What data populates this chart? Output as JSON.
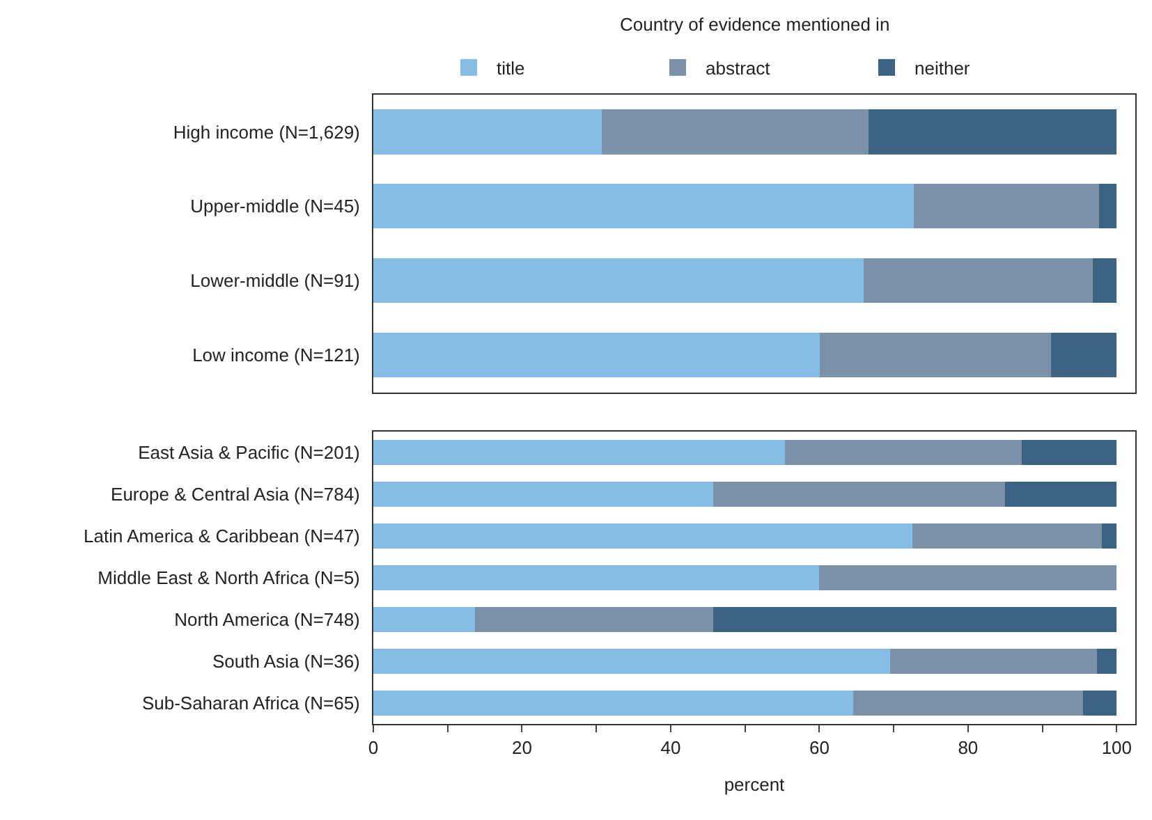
{
  "chart_data": [
    {
      "type": "bar",
      "orientation": "horizontal",
      "stacked": true,
      "legend": "top",
      "legend_title": "Country of evidence mentioned in",
      "tick_labels": "y",
      "categories": [
        "High income (N=1,629)",
        "Upper-middle (N=45)",
        "Lower-middle (N=91)",
        "Low income (N=121)"
      ],
      "series": [
        {
          "name": "title",
          "color": "#85bde6",
          "values": [
            30.7,
            72.7,
            66.0,
            60.1
          ]
        },
        {
          "name": "abstract",
          "color": "#7b91a8",
          "values": [
            35.9,
            24.9,
            30.8,
            31.1
          ]
        },
        {
          "name": "neither",
          "color": "#3d6383",
          "values": [
            33.4,
            2.4,
            3.2,
            8.8
          ]
        }
      ],
      "xlim": [
        0,
        102.5
      ]
    },
    {
      "type": "bar",
      "orientation": "horizontal",
      "stacked": true,
      "xlabel": "percent",
      "categories": [
        "East Asia & Pacific (N=201)",
        "Europe & Central Asia (N=784)",
        "Latin America & Caribbean (N=47)",
        "Middle East & North Africa (N=5)",
        "North America (N=748)",
        "South Asia (N=36)",
        "Sub-Saharan Africa (N=65)"
      ],
      "series": [
        {
          "color": "#85bde6",
          "values": [
            55.4,
            45.7,
            72.5,
            60.0,
            13.7,
            69.5,
            64.6
          ]
        },
        {
          "color": "#7b91a8",
          "values": [
            31.8,
            39.3,
            25.5,
            40.0,
            32.0,
            27.8,
            30.9
          ]
        },
        {
          "color": "#3d6383",
          "values": [
            12.8,
            15.0,
            2.0,
            0.0,
            54.3,
            2.7,
            4.5
          ]
        }
      ],
      "xlim": [
        0,
        102.5
      ],
      "xticks": [
        0,
        {
          "value": 10,
          "label": null
        },
        20,
        {
          "value": 30,
          "label": null
        },
        40,
        {
          "value": 50,
          "label": null
        },
        60,
        {
          "value": 70,
          "label": null
        },
        80,
        {
          "value": 90,
          "label": null
        },
        100
      ]
    }
  ]
}
